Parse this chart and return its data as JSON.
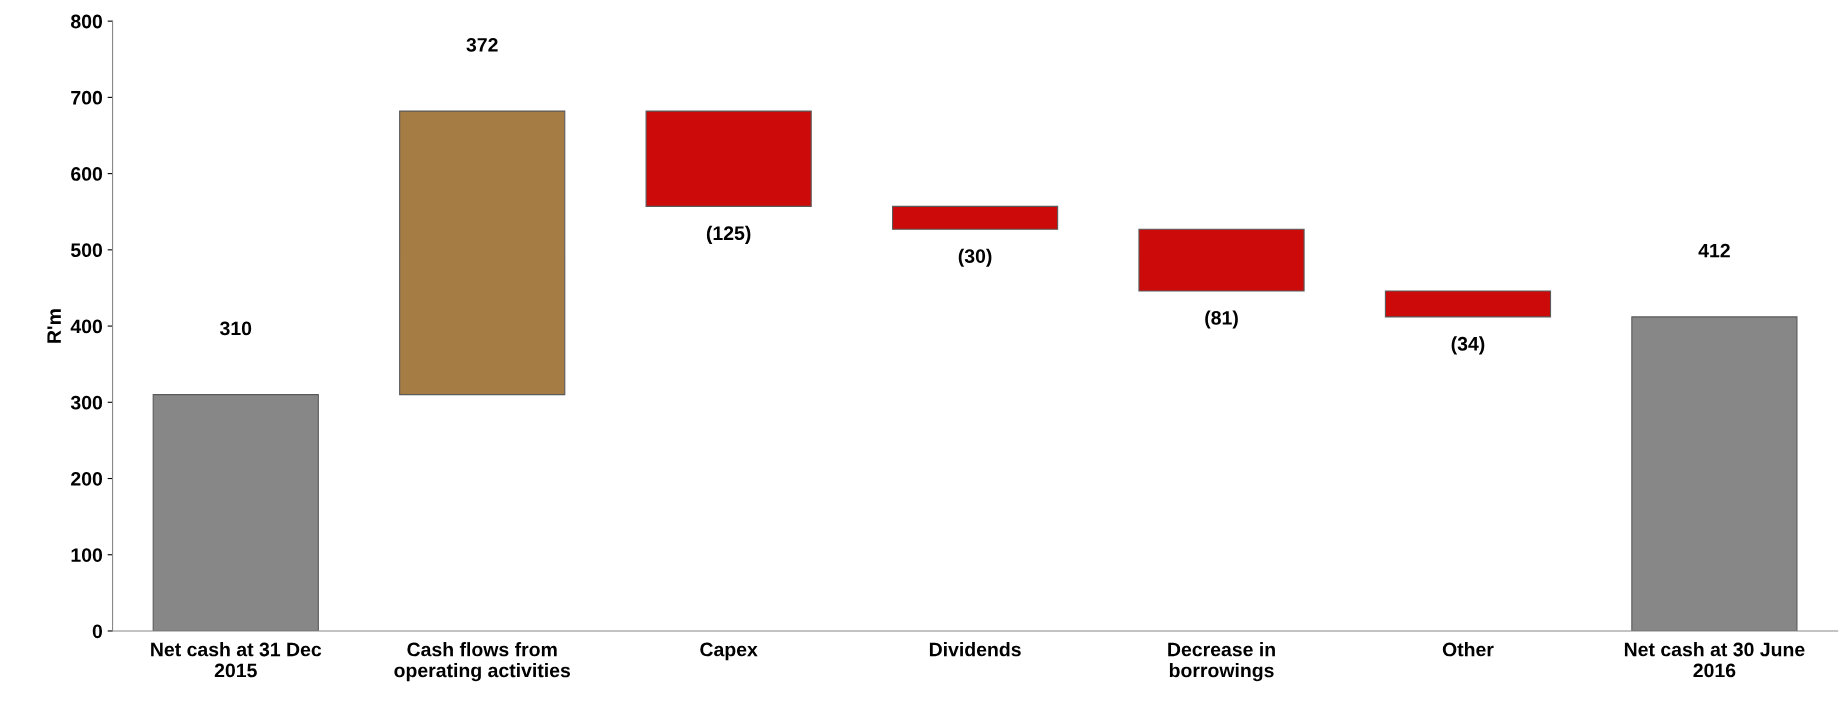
{
  "chart_data": {
    "type": "bar",
    "ylabel": "R'm",
    "categories": [
      "Net cash at 31 Dec\n2015",
      "Cash flows from\noperating activities",
      "Capex",
      "Dividends",
      "Decrease in\nborrowings",
      "Other",
      "Net cash at 30 June\n2016"
    ],
    "values": [
      310,
      372,
      -125,
      -30,
      -81,
      -34,
      412
    ],
    "base": [
      0,
      310,
      682,
      557,
      527,
      446,
      0
    ],
    "colors": [
      "#878787",
      "#a67c45",
      "#cc0a0a",
      "#cc0a0a",
      "#cc0a0a",
      "#cc0a0a",
      "#878787"
    ],
    "value_labels": [
      "310",
      "372",
      "(125)",
      "(30)",
      "(81)",
      "(34)",
      "412"
    ],
    "ylim": [
      0,
      800
    ],
    "yticks": [
      0,
      100,
      200,
      300,
      400,
      500,
      600,
      700,
      800
    ],
    "grid": false,
    "legend": false
  }
}
